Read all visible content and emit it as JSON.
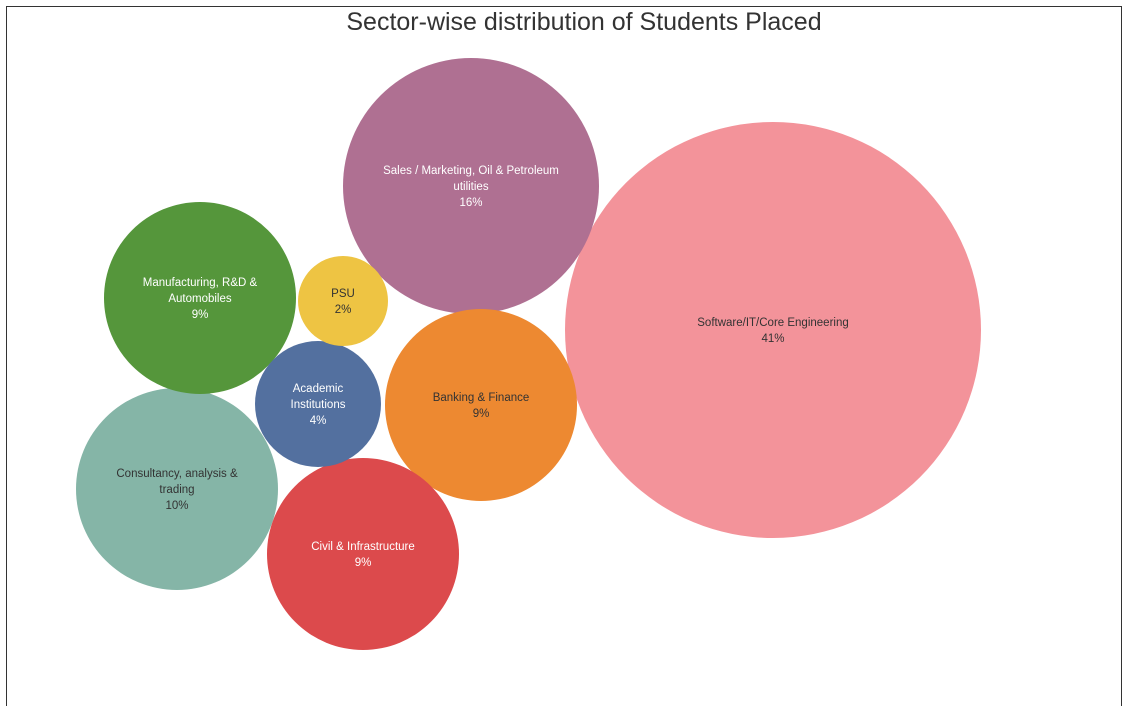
{
  "chart_data": {
    "type": "bubble",
    "title": "Sector-wise distribution of Students Placed",
    "series": [
      {
        "name": "Software/IT/Core Engineering",
        "label_lines": [
          "Software/IT/Core Engineering"
        ],
        "value": 41,
        "value_label": "41%",
        "color": "#f3939a",
        "text_color": "#333333"
      },
      {
        "name": "Sales / Marketing, Oil & Petroleum utilities",
        "label_lines": [
          "Sales / Marketing, Oil & Petroleum",
          "utilities"
        ],
        "value": 16,
        "value_label": "16%",
        "color": "#af7092",
        "text_color": "#ffffff"
      },
      {
        "name": "Consultancy, analysis & trading",
        "label_lines": [
          "Consultancy, analysis &",
          "trading"
        ],
        "value": 10,
        "value_label": "10%",
        "color": "#85b5a7",
        "text_color": "#333333"
      },
      {
        "name": "Manufacturing, R&D & Automobiles",
        "label_lines": [
          "Manufacturing, R&D &",
          "Automobiles"
        ],
        "value": 9,
        "value_label": "9%",
        "color": "#55963b",
        "text_color": "#ffffff"
      },
      {
        "name": "Banking & Finance",
        "label_lines": [
          "Banking & Finance"
        ],
        "value": 9,
        "value_label": "9%",
        "color": "#ed8931",
        "text_color": "#333333"
      },
      {
        "name": "Civil & Infrastructure",
        "label_lines": [
          "Civil & Infrastructure"
        ],
        "value": 9,
        "value_label": "9%",
        "color": "#dc4a4c",
        "text_color": "#ffffff"
      },
      {
        "name": "Academic Institutions",
        "label_lines": [
          "Academic",
          "Institutions"
        ],
        "value": 4,
        "value_label": "4%",
        "color": "#53709f",
        "text_color": "#ffffff"
      },
      {
        "name": "PSU",
        "label_lines": [
          "PSU"
        ],
        "value": 2,
        "value_label": "2%",
        "color": "#eec443",
        "text_color": "#333333"
      }
    ]
  }
}
